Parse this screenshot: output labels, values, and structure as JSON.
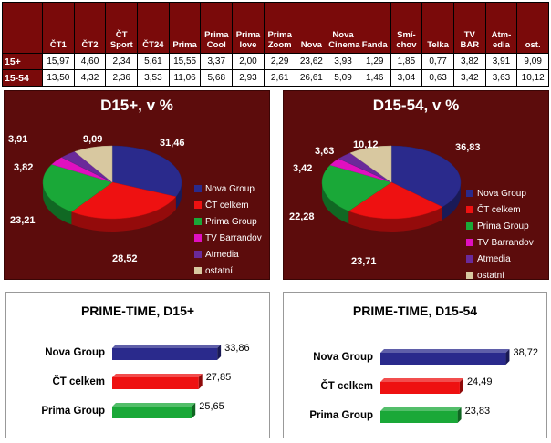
{
  "table": {
    "headers": [
      "ČT1",
      "ČT2",
      "ČT Sport",
      "ČT24",
      "Prima",
      "Prima Cool",
      "Prima love",
      "Prima Zoom",
      "Nova",
      "Nova Cinema",
      "Fanda",
      "Smí-chov",
      "Telka",
      "TV BAR",
      "Atm-edia",
      "ost."
    ],
    "rows": [
      {
        "label": "15+",
        "values": [
          "15,97",
          "4,60",
          "2,34",
          "5,61",
          "15,55",
          "3,37",
          "2,00",
          "2,29",
          "23,62",
          "3,93",
          "1,29",
          "1,85",
          "0,77",
          "3,82",
          "3,91",
          "9,09"
        ]
      },
      {
        "label": "15-54",
        "values": [
          "13,50",
          "4,32",
          "2,36",
          "3,53",
          "11,06",
          "5,68",
          "2,93",
          "2,61",
          "26,61",
          "5,09",
          "1,46",
          "3,04",
          "0,63",
          "3,42",
          "3,63",
          "10,12"
        ]
      }
    ]
  },
  "legend": [
    "Nova Group",
    "ČT celkem",
    "Prima Group",
    "TV Barrandov",
    "Atmedia",
    "ostatní"
  ],
  "colors": {
    "nova": "#2a2a8c",
    "ct": "#ee1111",
    "prima": "#1aa838",
    "barrandov": "#e010c0",
    "atmedia": "#6a2a9a",
    "ostatni": "#d8c8a0",
    "panel": "#5c0c0c",
    "header": "#7a0a0a"
  },
  "chart_data": [
    {
      "type": "pie",
      "title": "D15+, v %",
      "categories": [
        "Nova Group",
        "ČT celkem",
        "Prima Group",
        "TV Barrandov",
        "Atmedia",
        "ostatní"
      ],
      "values": [
        31.46,
        28.52,
        23.21,
        3.82,
        3.91,
        9.09
      ],
      "labels": [
        "31,46",
        "28,52",
        "23,21",
        "3,82",
        "3,91",
        "9,09"
      ]
    },
    {
      "type": "pie",
      "title": "D15-54, v %",
      "categories": [
        "Nova Group",
        "ČT celkem",
        "Prima Group",
        "TV Barrandov",
        "Atmedia",
        "ostatní"
      ],
      "values": [
        36.83,
        23.71,
        22.28,
        3.42,
        3.63,
        10.12
      ],
      "labels": [
        "36,83",
        "23,71",
        "22,28",
        "3,42",
        "3,63",
        "10,12"
      ]
    },
    {
      "type": "bar",
      "title": "PRIME-TIME, D15+",
      "categories": [
        "Nova Group",
        "ČT celkem",
        "Prima Group"
      ],
      "values": [
        33.86,
        27.85,
        25.65
      ],
      "labels": [
        "33,86",
        "27,85",
        "25,65"
      ]
    },
    {
      "type": "bar",
      "title": "PRIME-TIME, D15-54",
      "categories": [
        "Nova Group",
        "ČT celkem",
        "Prima Group"
      ],
      "values": [
        38.72,
        24.49,
        23.83
      ],
      "labels": [
        "38,72",
        "24,49",
        "23,83"
      ]
    }
  ]
}
